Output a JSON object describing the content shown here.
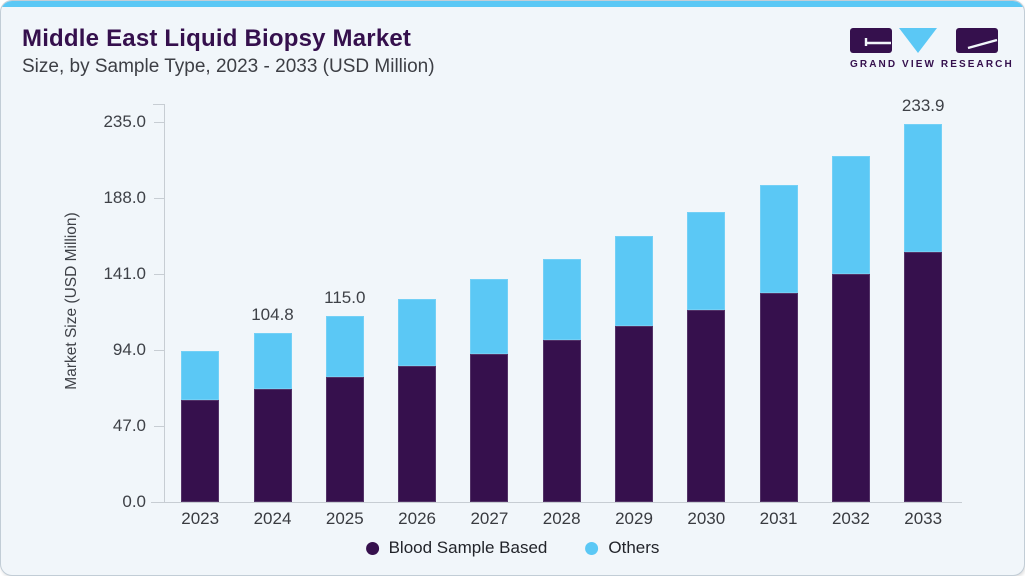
{
  "card": {
    "background": "#F1F6FA",
    "accent_color": "#5BC8F5",
    "border_color": "#C2CDD6"
  },
  "header": {
    "title": "Middle East Liquid Biopsy Market",
    "subtitle": "Size, by Sample Type, 2023 - 2033 (USD Million)",
    "title_color": "#35104D",
    "subtitle_color": "#3D3F45"
  },
  "logo": {
    "text": "GRAND VIEW RESEARCH",
    "purple": "#35104D",
    "blue": "#5BC8F5"
  },
  "chart_data": {
    "type": "bar",
    "stacked": true,
    "title": "",
    "xlabel": "",
    "ylabel": "Market Size (USD Million)",
    "categories": [
      "2023",
      "2024",
      "2025",
      "2026",
      "2027",
      "2028",
      "2029",
      "2030",
      "2031",
      "2032",
      "2033"
    ],
    "series": [
      {
        "name": "Blood Sample Based",
        "color": "#36104D",
        "values": [
          63.1,
          70.1,
          77.0,
          83.8,
          91.8,
          100.1,
          109.0,
          118.8,
          129.4,
          141.3,
          154.3
        ]
      },
      {
        "name": "Others",
        "color": "#5BC8F5",
        "values": [
          30.4,
          34.7,
          38.0,
          41.7,
          46.1,
          50.2,
          55.5,
          60.7,
          66.8,
          72.9,
          79.6
        ]
      }
    ],
    "totals": [
      93.5,
      104.8,
      115.0,
      125.5,
      137.9,
      150.3,
      164.5,
      179.5,
      196.2,
      214.2,
      233.9
    ],
    "bar_labels": {
      "2024": "104.8",
      "2025": "115.0",
      "2033": "233.9"
    },
    "y_ticks": [
      "235.0",
      "188.0",
      "141.0",
      "94.0",
      "47.0",
      "0.0"
    ],
    "ylim": [
      0,
      235
    ],
    "grid": false,
    "legend_position": "bottom"
  },
  "legend": {
    "items": [
      {
        "label": "Blood Sample Based",
        "color": "#36104D"
      },
      {
        "label": "Others",
        "color": "#5BC8F5"
      }
    ]
  }
}
